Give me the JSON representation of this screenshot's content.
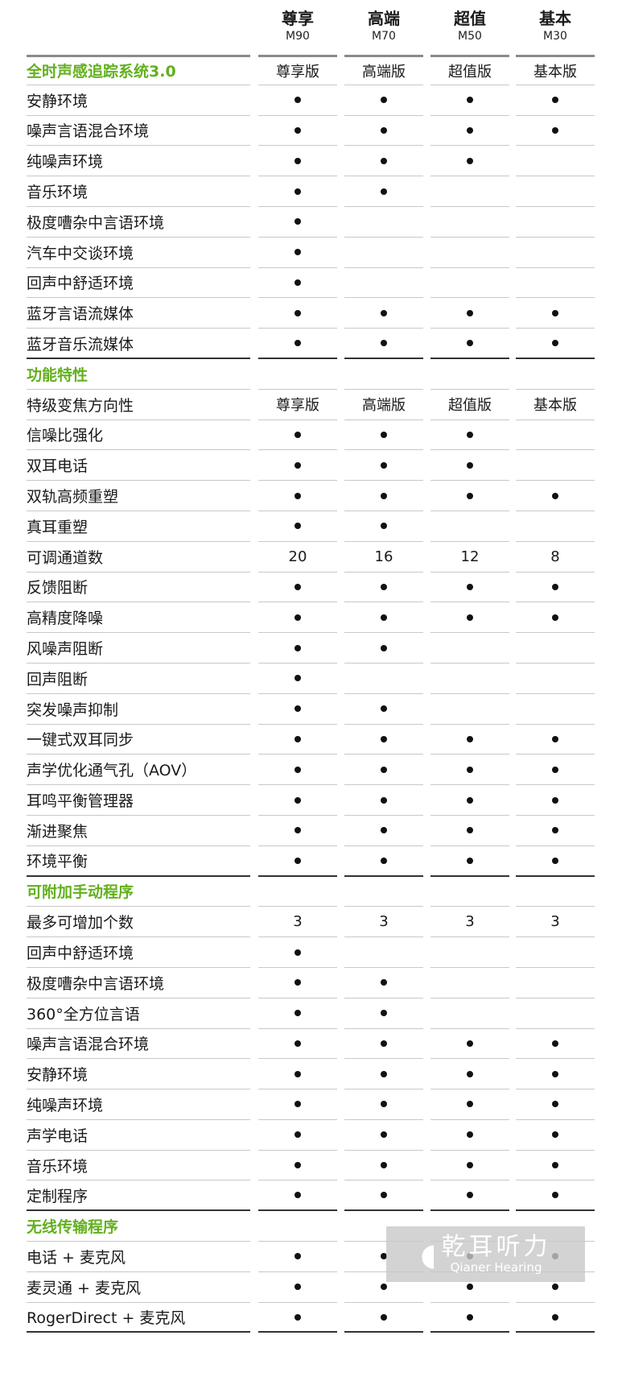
{
  "columns": [
    {
      "name": "尊享",
      "model": "M90"
    },
    {
      "name": "高端",
      "model": "M70"
    },
    {
      "name": "超值",
      "model": "M50"
    },
    {
      "name": "基本",
      "model": "M30"
    }
  ],
  "bullet_symbol": "●",
  "colors": {
    "section_title": "#63b01e",
    "bullet": "#111111"
  },
  "sections": [
    {
      "title": "全时声感追踪系统3.0",
      "values": [
        "尊享版",
        "高端版",
        "超值版",
        "基本版"
      ],
      "rows": [
        {
          "label": "安静环境",
          "values": [
            "●",
            "●",
            "●",
            "●"
          ]
        },
        {
          "label": "噪声言语混合环境",
          "values": [
            "●",
            "●",
            "●",
            "●"
          ]
        },
        {
          "label": "纯噪声环境",
          "values": [
            "●",
            "●",
            "●",
            ""
          ]
        },
        {
          "label": "音乐环境",
          "values": [
            "●",
            "●",
            "",
            ""
          ]
        },
        {
          "label": "极度嘈杂中言语环境",
          "values": [
            "●",
            "",
            "",
            ""
          ]
        },
        {
          "label": "汽车中交谈环境",
          "values": [
            "●",
            "",
            "",
            ""
          ]
        },
        {
          "label": "回声中舒适环境",
          "values": [
            "●",
            "",
            "",
            ""
          ]
        },
        {
          "label": "蓝牙言语流媒体",
          "values": [
            "●",
            "●",
            "●",
            "●"
          ]
        },
        {
          "label": "蓝牙音乐流媒体",
          "values": [
            "●",
            "●",
            "●",
            "●"
          ]
        }
      ]
    },
    {
      "title": "功能特性",
      "values": [
        "",
        "",
        "",
        ""
      ],
      "rows": [
        {
          "label": "特级变焦方向性",
          "values": [
            "尊享版",
            "高端版",
            "超值版",
            "基本版"
          ]
        },
        {
          "label": "信噪比强化",
          "values": [
            "●",
            "●",
            "●",
            ""
          ]
        },
        {
          "label": "双耳电话",
          "values": [
            "●",
            "●",
            "●",
            ""
          ]
        },
        {
          "label": "双轨高频重塑",
          "values": [
            "●",
            "●",
            "●",
            "●"
          ]
        },
        {
          "label": "真耳重塑",
          "values": [
            "●",
            "●",
            "",
            ""
          ]
        },
        {
          "label": "可调通道数",
          "values": [
            "20",
            "16",
            "12",
            "8"
          ]
        },
        {
          "label": "反馈阻断",
          "values": [
            "●",
            "●",
            "●",
            "●"
          ]
        },
        {
          "label": "高精度降噪",
          "values": [
            "●",
            "●",
            "●",
            "●"
          ]
        },
        {
          "label": "风噪声阻断",
          "values": [
            "●",
            "●",
            "",
            ""
          ]
        },
        {
          "label": "回声阻断",
          "values": [
            "●",
            "",
            "",
            ""
          ]
        },
        {
          "label": "突发噪声抑制",
          "values": [
            "●",
            "●",
            "",
            ""
          ]
        },
        {
          "label": "一键式双耳同步",
          "values": [
            "●",
            "●",
            "●",
            "●"
          ]
        },
        {
          "label": "声学优化通气孔（AOV）",
          "values": [
            "●",
            "●",
            "●",
            "●"
          ]
        },
        {
          "label": "耳鸣平衡管理器",
          "values": [
            "●",
            "●",
            "●",
            "●"
          ]
        },
        {
          "label": "渐进聚焦",
          "values": [
            "●",
            "●",
            "●",
            "●"
          ]
        },
        {
          "label": "环境平衡",
          "values": [
            "●",
            "●",
            "●",
            "●"
          ]
        }
      ]
    },
    {
      "title": "可附加手动程序",
      "values": [
        "",
        "",
        "",
        ""
      ],
      "rows": [
        {
          "label": "最多可增加个数",
          "values": [
            "3",
            "3",
            "3",
            "3"
          ]
        },
        {
          "label": "回声中舒适环境",
          "values": [
            "●",
            "",
            "",
            ""
          ]
        },
        {
          "label": "极度嘈杂中言语环境",
          "values": [
            "●",
            "●",
            "",
            ""
          ]
        },
        {
          "label": "360°全方位言语",
          "values": [
            "●",
            "●",
            "",
            ""
          ]
        },
        {
          "label": "噪声言语混合环境",
          "values": [
            "●",
            "●",
            "●",
            "●"
          ]
        },
        {
          "label": "安静环境",
          "values": [
            "●",
            "●",
            "●",
            "●"
          ]
        },
        {
          "label": "纯噪声环境",
          "values": [
            "●",
            "●",
            "●",
            "●"
          ]
        },
        {
          "label": "声学电话",
          "values": [
            "●",
            "●",
            "●",
            "●"
          ]
        },
        {
          "label": "音乐环境",
          "values": [
            "●",
            "●",
            "●",
            "●"
          ]
        },
        {
          "label": "定制程序",
          "values": [
            "●",
            "●",
            "●",
            "●"
          ]
        }
      ]
    },
    {
      "title": "无线传输程序",
      "values": [
        "",
        "",
        "",
        ""
      ],
      "rows": [
        {
          "label": "电话 + 麦克风",
          "values": [
            "●",
            "●",
            "●",
            "●"
          ]
        },
        {
          "label": "麦灵通 + 麦克风",
          "values": [
            "●",
            "●",
            "●",
            "●"
          ]
        },
        {
          "label": "RogerDirect + 麦克风",
          "values": [
            "●",
            "●",
            "●",
            "●"
          ]
        }
      ]
    }
  ],
  "watermark": {
    "name_cn": "乾耳听力",
    "name_en": "Qianer Hearing",
    "icon": "ear-icon"
  }
}
